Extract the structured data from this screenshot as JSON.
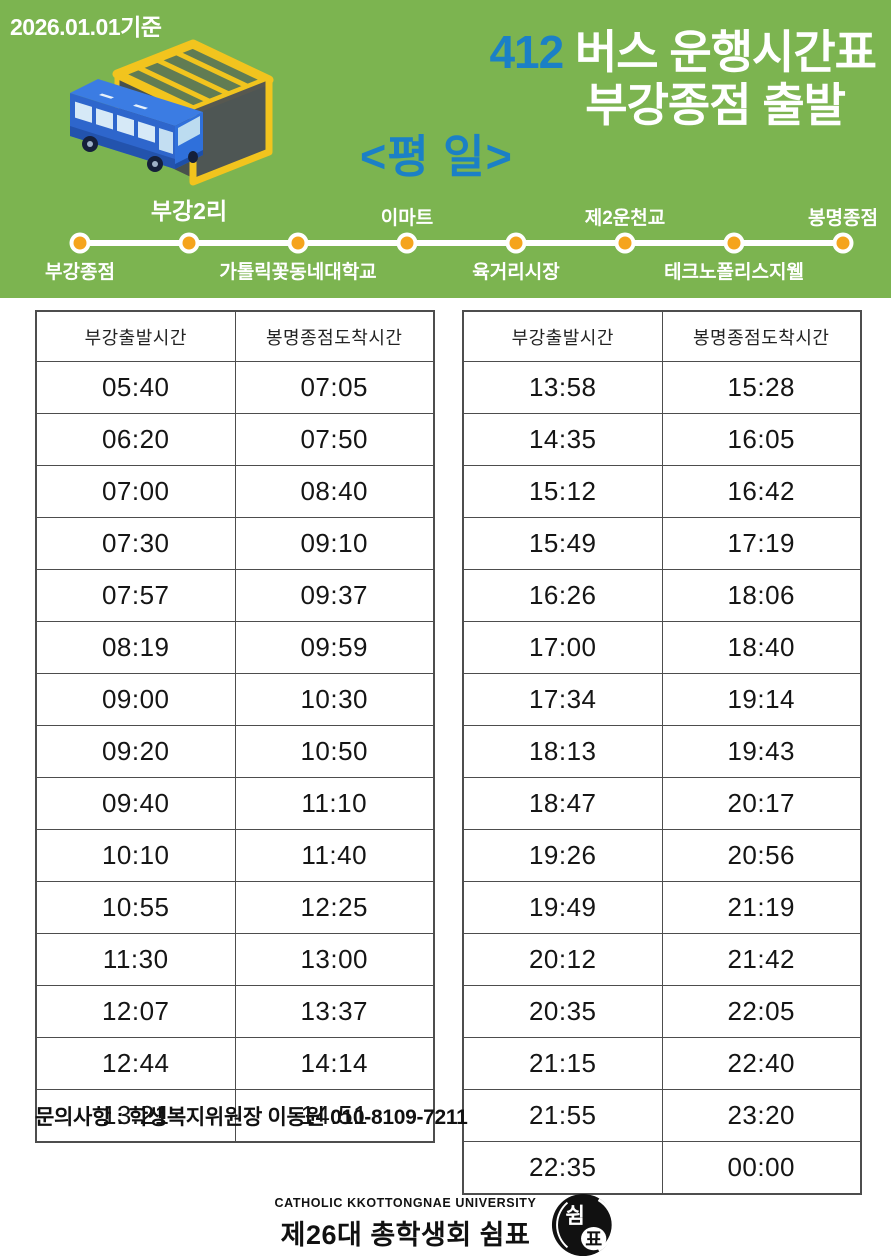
{
  "meta": {
    "date_label": "2026.01.01기준"
  },
  "title": {
    "route_number": "412",
    "line1_rest": "버스 운행시간표",
    "line2": "부강종점 출발",
    "day_type": "<평 일>"
  },
  "route": {
    "stops": [
      {
        "name": "부강종점",
        "label_side": "below"
      },
      {
        "name": "부강2리",
        "label_side": "above",
        "major": true
      },
      {
        "name": "가톨릭꽃동네대학교",
        "label_side": "below"
      },
      {
        "name": "이마트",
        "label_side": "above"
      },
      {
        "name": "육거리시장",
        "label_side": "below"
      },
      {
        "name": "제2운천교",
        "label_side": "above"
      },
      {
        "name": "테크노폴리스지웰",
        "label_side": "below"
      },
      {
        "name": "봉명종점",
        "label_side": "above"
      }
    ]
  },
  "timetable": {
    "columns": [
      "부강출발시간",
      "봉명종점도착시간"
    ],
    "tables": [
      {
        "rows": [
          [
            "05:40",
            "07:05"
          ],
          [
            "06:20",
            "07:50"
          ],
          [
            "07:00",
            "08:40"
          ],
          [
            "07:30",
            "09:10"
          ],
          [
            "07:57",
            "09:37"
          ],
          [
            "08:19",
            "09:59"
          ],
          [
            "09:00",
            "10:30"
          ],
          [
            "09:20",
            "10:50"
          ],
          [
            "09:40",
            "11:10"
          ],
          [
            "10:10",
            "11:40"
          ],
          [
            "10:55",
            "12:25"
          ],
          [
            "11:30",
            "13:00"
          ],
          [
            "12:07",
            "13:37"
          ],
          [
            "12:44",
            "14:14"
          ],
          [
            "13:21",
            "14:51"
          ]
        ]
      },
      {
        "rows": [
          [
            "13:58",
            "15:28"
          ],
          [
            "14:35",
            "16:05"
          ],
          [
            "15:12",
            "16:42"
          ],
          [
            "15:49",
            "17:19"
          ],
          [
            "16:26",
            "18:06"
          ],
          [
            "17:00",
            "18:40"
          ],
          [
            "17:34",
            "19:14"
          ],
          [
            "18:13",
            "19:43"
          ],
          [
            "18:47",
            "20:17"
          ],
          [
            "19:26",
            "20:56"
          ],
          [
            "19:49",
            "21:19"
          ],
          [
            "20:12",
            "21:42"
          ],
          [
            "20:35",
            "22:05"
          ],
          [
            "21:15",
            "22:40"
          ],
          [
            "21:55",
            "23:20"
          ],
          [
            "22:35",
            "00:00"
          ]
        ]
      }
    ]
  },
  "contact": {
    "text": "문의사항 : 학생복지위원장 이동원 010-8109-7211"
  },
  "footer": {
    "university": "CATHOLIC KKOTTONGNAE UNIVERSITY",
    "council": "제26대 총학생회 쉼표",
    "logo_text_top": "쉼",
    "logo_text_bottom": "표"
  },
  "colors": {
    "header_green": "#7cb450",
    "accent_blue": "#1b80c6",
    "dot_orange": "#f5a41d",
    "shelter_yellow": "#f2c41e",
    "bus_blue": "#2e66cc"
  }
}
